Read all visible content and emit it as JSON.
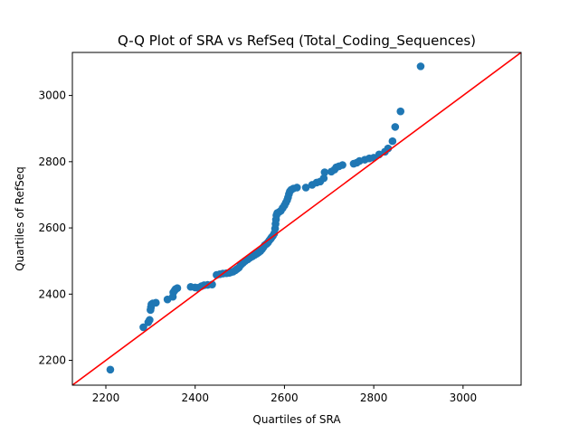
{
  "chart_data": {
    "type": "scatter",
    "title": "Q-Q Plot of SRA vs RefSeq (Total_Coding_Sequences)",
    "xlabel": "Quartiles of SRA",
    "ylabel": "Quartiles of RefSeq",
    "xlim": [
      2125,
      3130
    ],
    "ylim": [
      2125,
      3130
    ],
    "xticks": [
      2200,
      2400,
      2600,
      2800,
      3000
    ],
    "yticks": [
      2200,
      2400,
      2600,
      2800,
      3000
    ],
    "grid": false,
    "colors": {
      "points": "#1f77b4",
      "reference_line": "#ff0000"
    },
    "reference_line": {
      "from": [
        2125,
        2125
      ],
      "to": [
        3130,
        3130
      ]
    },
    "points": [
      [
        2210,
        2172
      ],
      [
        2284,
        2300
      ],
      [
        2295,
        2315
      ],
      [
        2298,
        2322
      ],
      [
        2300,
        2352
      ],
      [
        2301,
        2360
      ],
      [
        2302,
        2369
      ],
      [
        2305,
        2372
      ],
      [
        2312,
        2374
      ],
      [
        2338,
        2384
      ],
      [
        2350,
        2392
      ],
      [
        2351,
        2405
      ],
      [
        2354,
        2411
      ],
      [
        2356,
        2415
      ],
      [
        2360,
        2418
      ],
      [
        2390,
        2422
      ],
      [
        2400,
        2420
      ],
      [
        2406,
        2419
      ],
      [
        2414,
        2424
      ],
      [
        2420,
        2427
      ],
      [
        2428,
        2428
      ],
      [
        2438,
        2429
      ],
      [
        2448,
        2458
      ],
      [
        2455,
        2460
      ],
      [
        2462,
        2462
      ],
      [
        2470,
        2463
      ],
      [
        2476,
        2464
      ],
      [
        2480,
        2466
      ],
      [
        2485,
        2468
      ],
      [
        2490,
        2472
      ],
      [
        2494,
        2476
      ],
      [
        2498,
        2480
      ],
      [
        2502,
        2488
      ],
      [
        2507,
        2494
      ],
      [
        2512,
        2500
      ],
      [
        2518,
        2505
      ],
      [
        2523,
        2510
      ],
      [
        2528,
        2514
      ],
      [
        2533,
        2518
      ],
      [
        2538,
        2522
      ],
      [
        2542,
        2526
      ],
      [
        2546,
        2530
      ],
      [
        2550,
        2536
      ],
      [
        2553,
        2542
      ],
      [
        2556,
        2548
      ],
      [
        2560,
        2552
      ],
      [
        2563,
        2556
      ],
      [
        2566,
        2562
      ],
      [
        2569,
        2567
      ],
      [
        2571,
        2571
      ],
      [
        2574,
        2576
      ],
      [
        2577,
        2583
      ],
      [
        2579,
        2598
      ],
      [
        2580,
        2612
      ],
      [
        2581,
        2625
      ],
      [
        2582,
        2638
      ],
      [
        2584,
        2645
      ],
      [
        2588,
        2648
      ],
      [
        2592,
        2652
      ],
      [
        2596,
        2660
      ],
      [
        2600,
        2668
      ],
      [
        2603,
        2676
      ],
      [
        2606,
        2684
      ],
      [
        2608,
        2692
      ],
      [
        2610,
        2702
      ],
      [
        2612,
        2710
      ],
      [
        2615,
        2715
      ],
      [
        2620,
        2719
      ],
      [
        2628,
        2722
      ],
      [
        2648,
        2722
      ],
      [
        2662,
        2730
      ],
      [
        2672,
        2737
      ],
      [
        2680,
        2740
      ],
      [
        2688,
        2750
      ],
      [
        2690,
        2768
      ],
      [
        2705,
        2770
      ],
      [
        2712,
        2776
      ],
      [
        2716,
        2783
      ],
      [
        2722,
        2786
      ],
      [
        2730,
        2790
      ],
      [
        2755,
        2794
      ],
      [
        2762,
        2797
      ],
      [
        2768,
        2802
      ],
      [
        2780,
        2806
      ],
      [
        2790,
        2810
      ],
      [
        2800,
        2812
      ],
      [
        2812,
        2822
      ],
      [
        2825,
        2830
      ],
      [
        2832,
        2840
      ],
      [
        2842,
        2862
      ],
      [
        2848,
        2905
      ],
      [
        2860,
        2952
      ],
      [
        2905,
        3088
      ]
    ]
  }
}
